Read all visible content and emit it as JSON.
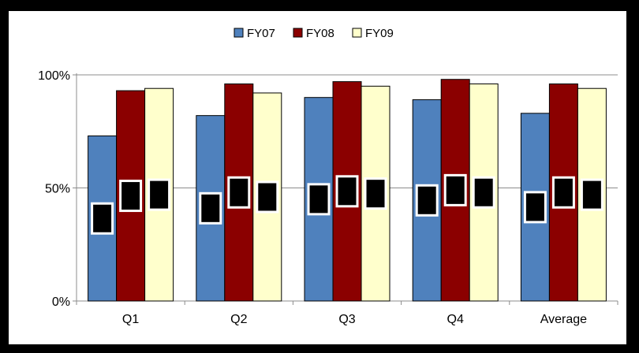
{
  "chart_data": {
    "type": "bar",
    "title": "",
    "xlabel": "",
    "ylabel": "",
    "categories": [
      "Q1",
      "Q2",
      "Q3",
      "Q4",
      "Average"
    ],
    "series": [
      {
        "name": "FY07",
        "values": [
          73,
          82,
          90,
          89,
          83
        ],
        "color": "#4F81BD"
      },
      {
        "name": "FY08",
        "values": [
          93,
          96,
          97,
          98,
          96
        ],
        "color": "#8B0000"
      },
      {
        "name": "FY09",
        "values": [
          94,
          92,
          95,
          96,
          94
        ],
        "color": "#FFFFCC"
      }
    ],
    "ylim": [
      0,
      100
    ],
    "y_ticks": [
      {
        "value": 0,
        "label": "0%"
      },
      {
        "value": 50,
        "label": "50%"
      },
      {
        "value": 100,
        "label": "100%"
      }
    ],
    "grid": true,
    "legend_position": "top-center",
    "data_labels": "obscured by black boxes"
  }
}
